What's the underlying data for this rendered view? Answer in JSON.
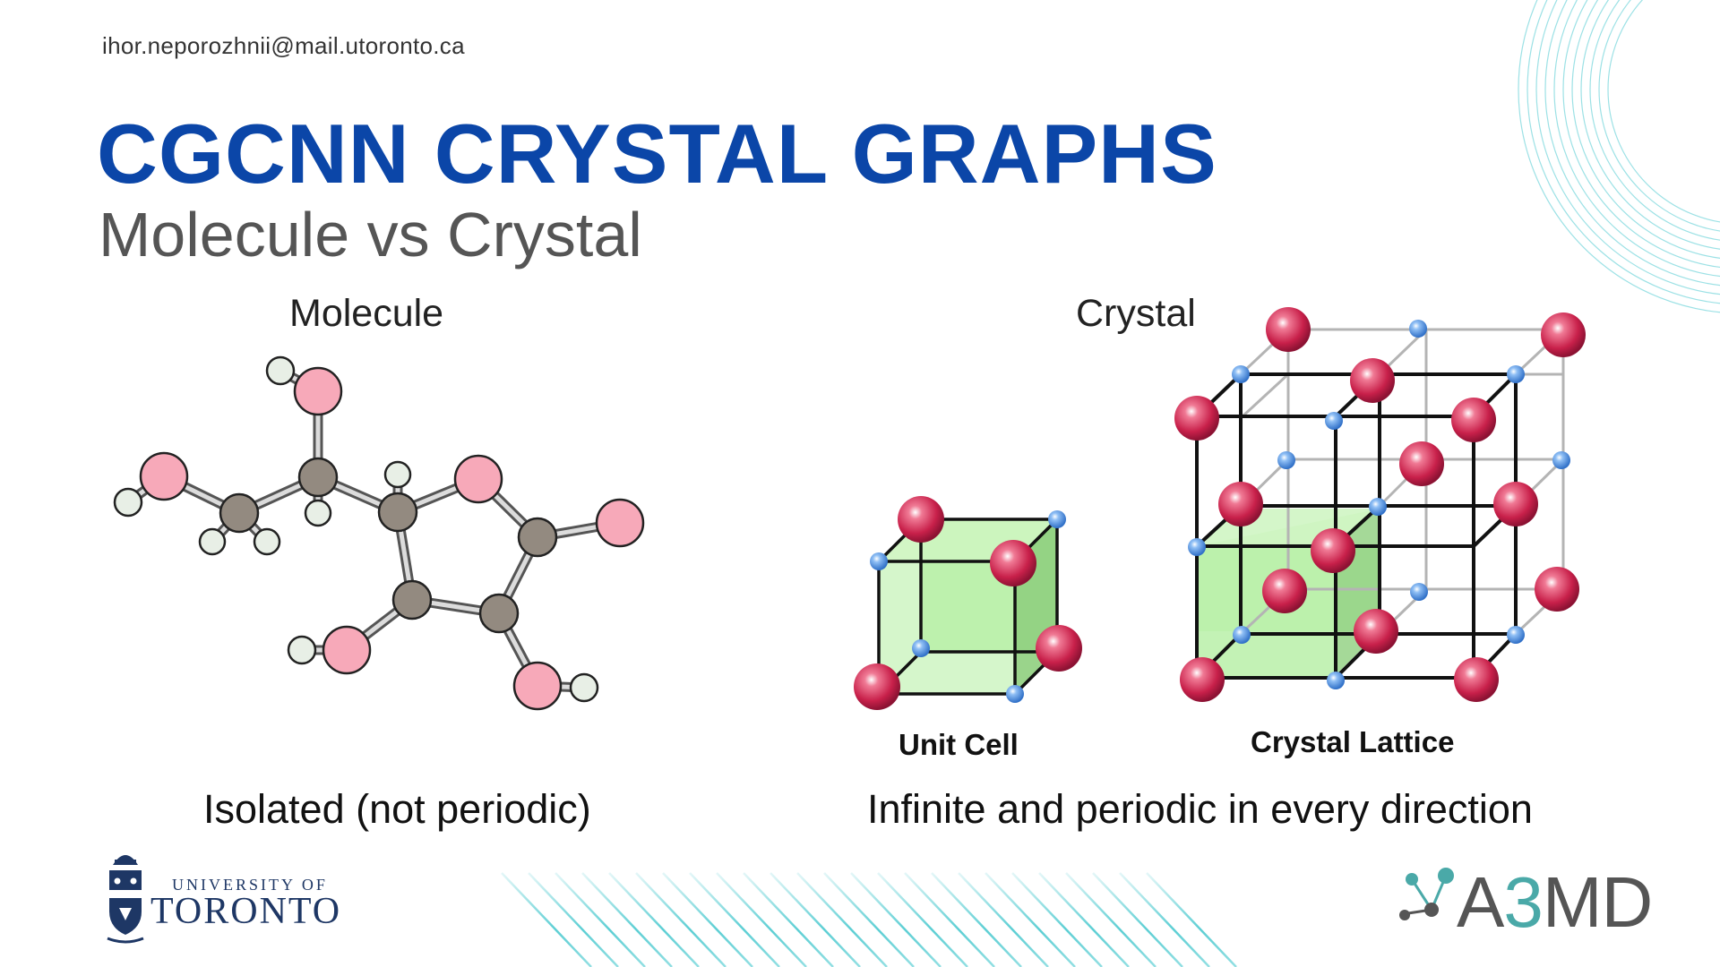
{
  "header": {
    "email": "ihor.neporozhnii@mail.utoronto.ca",
    "title": "CGCNN CRYSTAL GRAPHS",
    "subtitle": "Molecule vs Crystal"
  },
  "molecule": {
    "heading": "Molecule",
    "caption": "Isolated (not periodic)"
  },
  "crystal": {
    "heading": "Crystal",
    "caption": "Infinite and periodic in every direction",
    "unit_cell_label": "Unit Cell",
    "lattice_label": "Crystal Lattice"
  },
  "logos": {
    "uoft_line1": "UNIVERSITY OF",
    "uoft_line2": "TORONTO",
    "a3md_prefix": "A",
    "a3md_three": "3",
    "a3md_suffix": "MD"
  },
  "colors": {
    "title_blue": "#0b46a8",
    "atom_red": "#c8204a",
    "atom_pink": "#f7a9b9",
    "atom_gray": "#938a80",
    "atom_white": "#e8efe6",
    "atom_blue": "#4a8fe0",
    "cell_green": "#b9f0a8",
    "accent_teal": "#4ac9cf"
  }
}
